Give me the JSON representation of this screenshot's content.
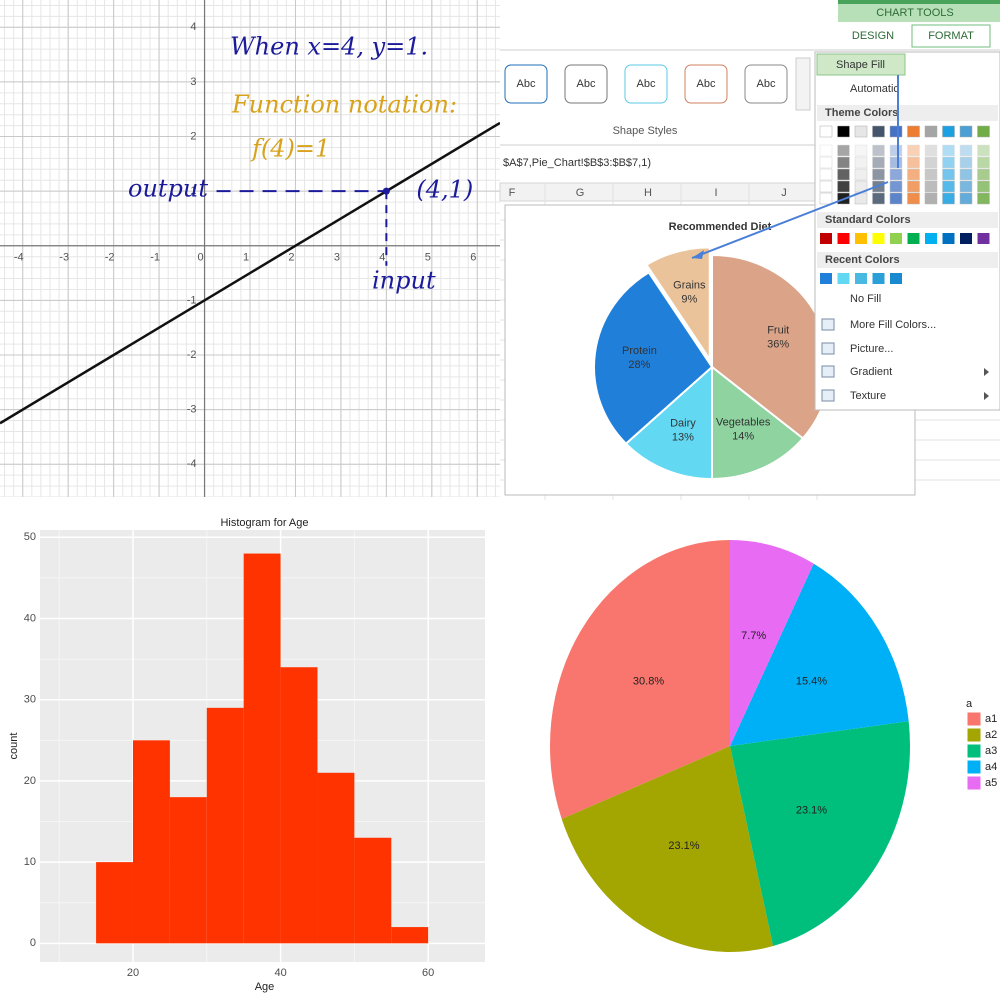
{
  "chart_data": [
    {
      "type": "line",
      "annotations": [
        "When x=4, y=1.",
        "Function notation:",
        "f(4)=1",
        "output",
        "input"
      ],
      "x": [
        -4.5,
        6.5
      ],
      "series": [
        {
          "color": "#111111",
          "values": [
            -3.25,
            2.25
          ]
        }
      ],
      "points": [
        {
          "x": 4,
          "y": 1,
          "label": "(4,1)",
          "color": "#1a1a9a"
        }
      ],
      "xlim": [
        -4.5,
        6.5
      ],
      "ylim": [
        -4.6,
        4.5
      ],
      "xticks": [
        -4,
        -3,
        -2,
        -1,
        0,
        1,
        2,
        3,
        4,
        5,
        6
      ],
      "yticks": [
        -4,
        -3,
        -2,
        -1,
        1,
        2,
        3,
        4
      ],
      "grid": true
    },
    {
      "type": "pie",
      "title": "Recommended Diet",
      "direction": "clockwise",
      "categories": [
        "Fruit",
        "Vegetables",
        "Dairy",
        "Protein",
        "Grains"
      ],
      "values": [
        36,
        14,
        13,
        28,
        9
      ],
      "value_labels": [
        "36%",
        "14%",
        "13%",
        "28%",
        "9%"
      ],
      "colors": [
        "#dba489",
        "#8ed3a0",
        "#62d8f2",
        "#1f7fd9",
        "#ebc39a"
      ]
    },
    {
      "type": "histogram",
      "title": "Histogram for Age",
      "xlabel": "Age",
      "ylabel": "count",
      "bins": [
        15,
        20,
        25,
        30,
        35,
        40,
        45,
        50,
        55,
        60
      ],
      "values": [
        10,
        25,
        18,
        29,
        48,
        34,
        21,
        13,
        2
      ],
      "color": "#ff3300",
      "xlim": [
        7.4,
        67.7
      ],
      "ylim": [
        -2.3,
        50.9
      ],
      "xticks": [
        20,
        40,
        60
      ],
      "yticks": [
        0,
        10,
        20,
        30,
        40,
        50
      ],
      "grid": true
    },
    {
      "type": "pie",
      "direction": "counterclockwise",
      "legend_title": "a",
      "legend": "right",
      "categories": [
        "a1",
        "a2",
        "a3",
        "a4",
        "a5"
      ],
      "values": [
        30.8,
        23.1,
        23.1,
        15.4,
        7.7
      ],
      "value_labels": [
        "30.8%",
        "23.1%",
        "23.1%",
        "15.4%",
        "7.7%"
      ],
      "colors": [
        "#f8766d",
        "#a3a500",
        "#00bf7d",
        "#00b0f6",
        "#e76bf3"
      ]
    }
  ],
  "excel_ui": {
    "tools_header": "CHART TOOLS",
    "tabs": [
      "DESIGN",
      "FORMAT"
    ],
    "styles": [
      "Abc",
      "Abc",
      "Abc",
      "Abc",
      "Abc"
    ],
    "styles_label": "Shape Styles",
    "formula": "$A$7,Pie_Chart!$B$3:$B$7,1)",
    "columns": [
      "F",
      "G",
      "H",
      "I",
      "J"
    ],
    "menu": {
      "button": "Shape Fill",
      "automatic": "Automatic",
      "theme_colors": "Theme Colors",
      "standard_colors": "Standard Colors",
      "recent_colors": "Recent Colors",
      "items": [
        "No Fill",
        "More Fill Colors...",
        "Picture...",
        "Gradient",
        "Texture"
      ]
    }
  }
}
